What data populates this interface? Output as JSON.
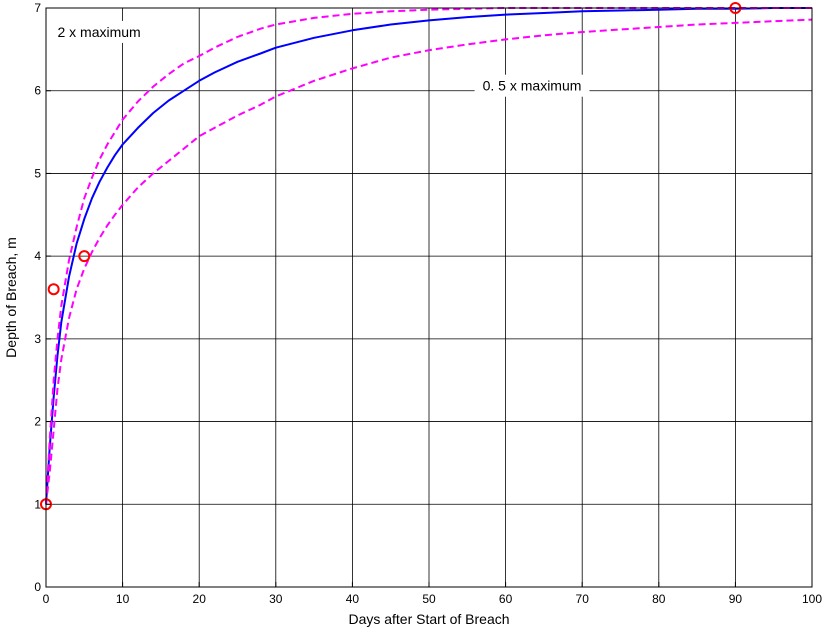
{
  "chart_data": {
    "type": "line",
    "xlabel": "Days after Start of Breach",
    "ylabel": "Depth of Breach, m",
    "xlim": [
      0,
      100
    ],
    "ylim": [
      0,
      7
    ],
    "xticks": [
      0,
      10,
      20,
      30,
      40,
      50,
      60,
      70,
      80,
      90,
      100
    ],
    "yticks": [
      0,
      1,
      2,
      3,
      4,
      5,
      6,
      7
    ],
    "grid": true,
    "series": [
      {
        "style": "solid",
        "color": "#0000ff",
        "x": [
          0,
          0.5,
          1,
          1.5,
          2,
          3,
          4,
          5,
          6,
          7,
          8,
          9,
          10,
          12,
          14,
          16,
          18,
          20,
          22,
          25,
          28,
          30,
          35,
          40,
          45,
          50,
          55,
          60,
          65,
          70,
          75,
          80,
          85,
          90,
          95,
          100
        ],
        "y": [
          1.0,
          1.7,
          2.3,
          2.8,
          3.2,
          3.75,
          4.15,
          4.45,
          4.7,
          4.9,
          5.07,
          5.22,
          5.35,
          5.55,
          5.73,
          5.88,
          6.0,
          6.12,
          6.22,
          6.35,
          6.45,
          6.52,
          6.64,
          6.73,
          6.8,
          6.85,
          6.89,
          6.92,
          6.94,
          6.96,
          6.97,
          6.98,
          6.99,
          6.99,
          7.0,
          7.0
        ]
      },
      {
        "style": "dashed",
        "color": "#ff00ff",
        "x": [
          0,
          0.5,
          1,
          1.5,
          2,
          3,
          4,
          5,
          6,
          7,
          8,
          9,
          10,
          12,
          14,
          16,
          18,
          20,
          22,
          25,
          28,
          30,
          35,
          40,
          45,
          50,
          55,
          60,
          65,
          70,
          80,
          90,
          100
        ],
        "y": [
          1.0,
          1.8,
          2.5,
          3.0,
          3.4,
          3.95,
          4.35,
          4.7,
          4.95,
          5.17,
          5.35,
          5.5,
          5.65,
          5.87,
          6.05,
          6.2,
          6.33,
          6.42,
          6.52,
          6.65,
          6.75,
          6.8,
          6.88,
          6.93,
          6.96,
          6.98,
          6.99,
          7.0,
          7.0,
          7.0,
          7.0,
          7.0,
          7.0
        ]
      },
      {
        "style": "dashed",
        "color": "#ff00ff",
        "x": [
          0,
          0.5,
          1,
          1.5,
          2,
          3,
          4,
          5,
          6,
          7,
          8,
          9,
          10,
          12,
          14,
          16,
          18,
          20,
          22,
          25,
          28,
          30,
          35,
          40,
          45,
          50,
          55,
          60,
          65,
          70,
          75,
          80,
          85,
          90,
          95,
          100
        ],
        "y": [
          1.0,
          1.4,
          1.9,
          2.4,
          2.75,
          3.25,
          3.6,
          3.85,
          4.05,
          4.22,
          4.37,
          4.5,
          4.62,
          4.83,
          5.0,
          5.15,
          5.3,
          5.45,
          5.55,
          5.7,
          5.83,
          5.93,
          6.12,
          6.27,
          6.4,
          6.49,
          6.56,
          6.62,
          6.67,
          6.71,
          6.74,
          6.77,
          6.8,
          6.82,
          6.84,
          6.86
        ]
      },
      {
        "style": "markers",
        "color": "#ff0000",
        "x": [
          0,
          1,
          5,
          90
        ],
        "y": [
          1.0,
          3.6,
          4.0,
          7.0
        ]
      }
    ],
    "annotations": [
      {
        "text": "2 x maximum",
        "x": 1.5,
        "y": 6.65
      },
      {
        "text": "0. 5 x maximum",
        "x": 57,
        "y": 6.0
      }
    ]
  }
}
